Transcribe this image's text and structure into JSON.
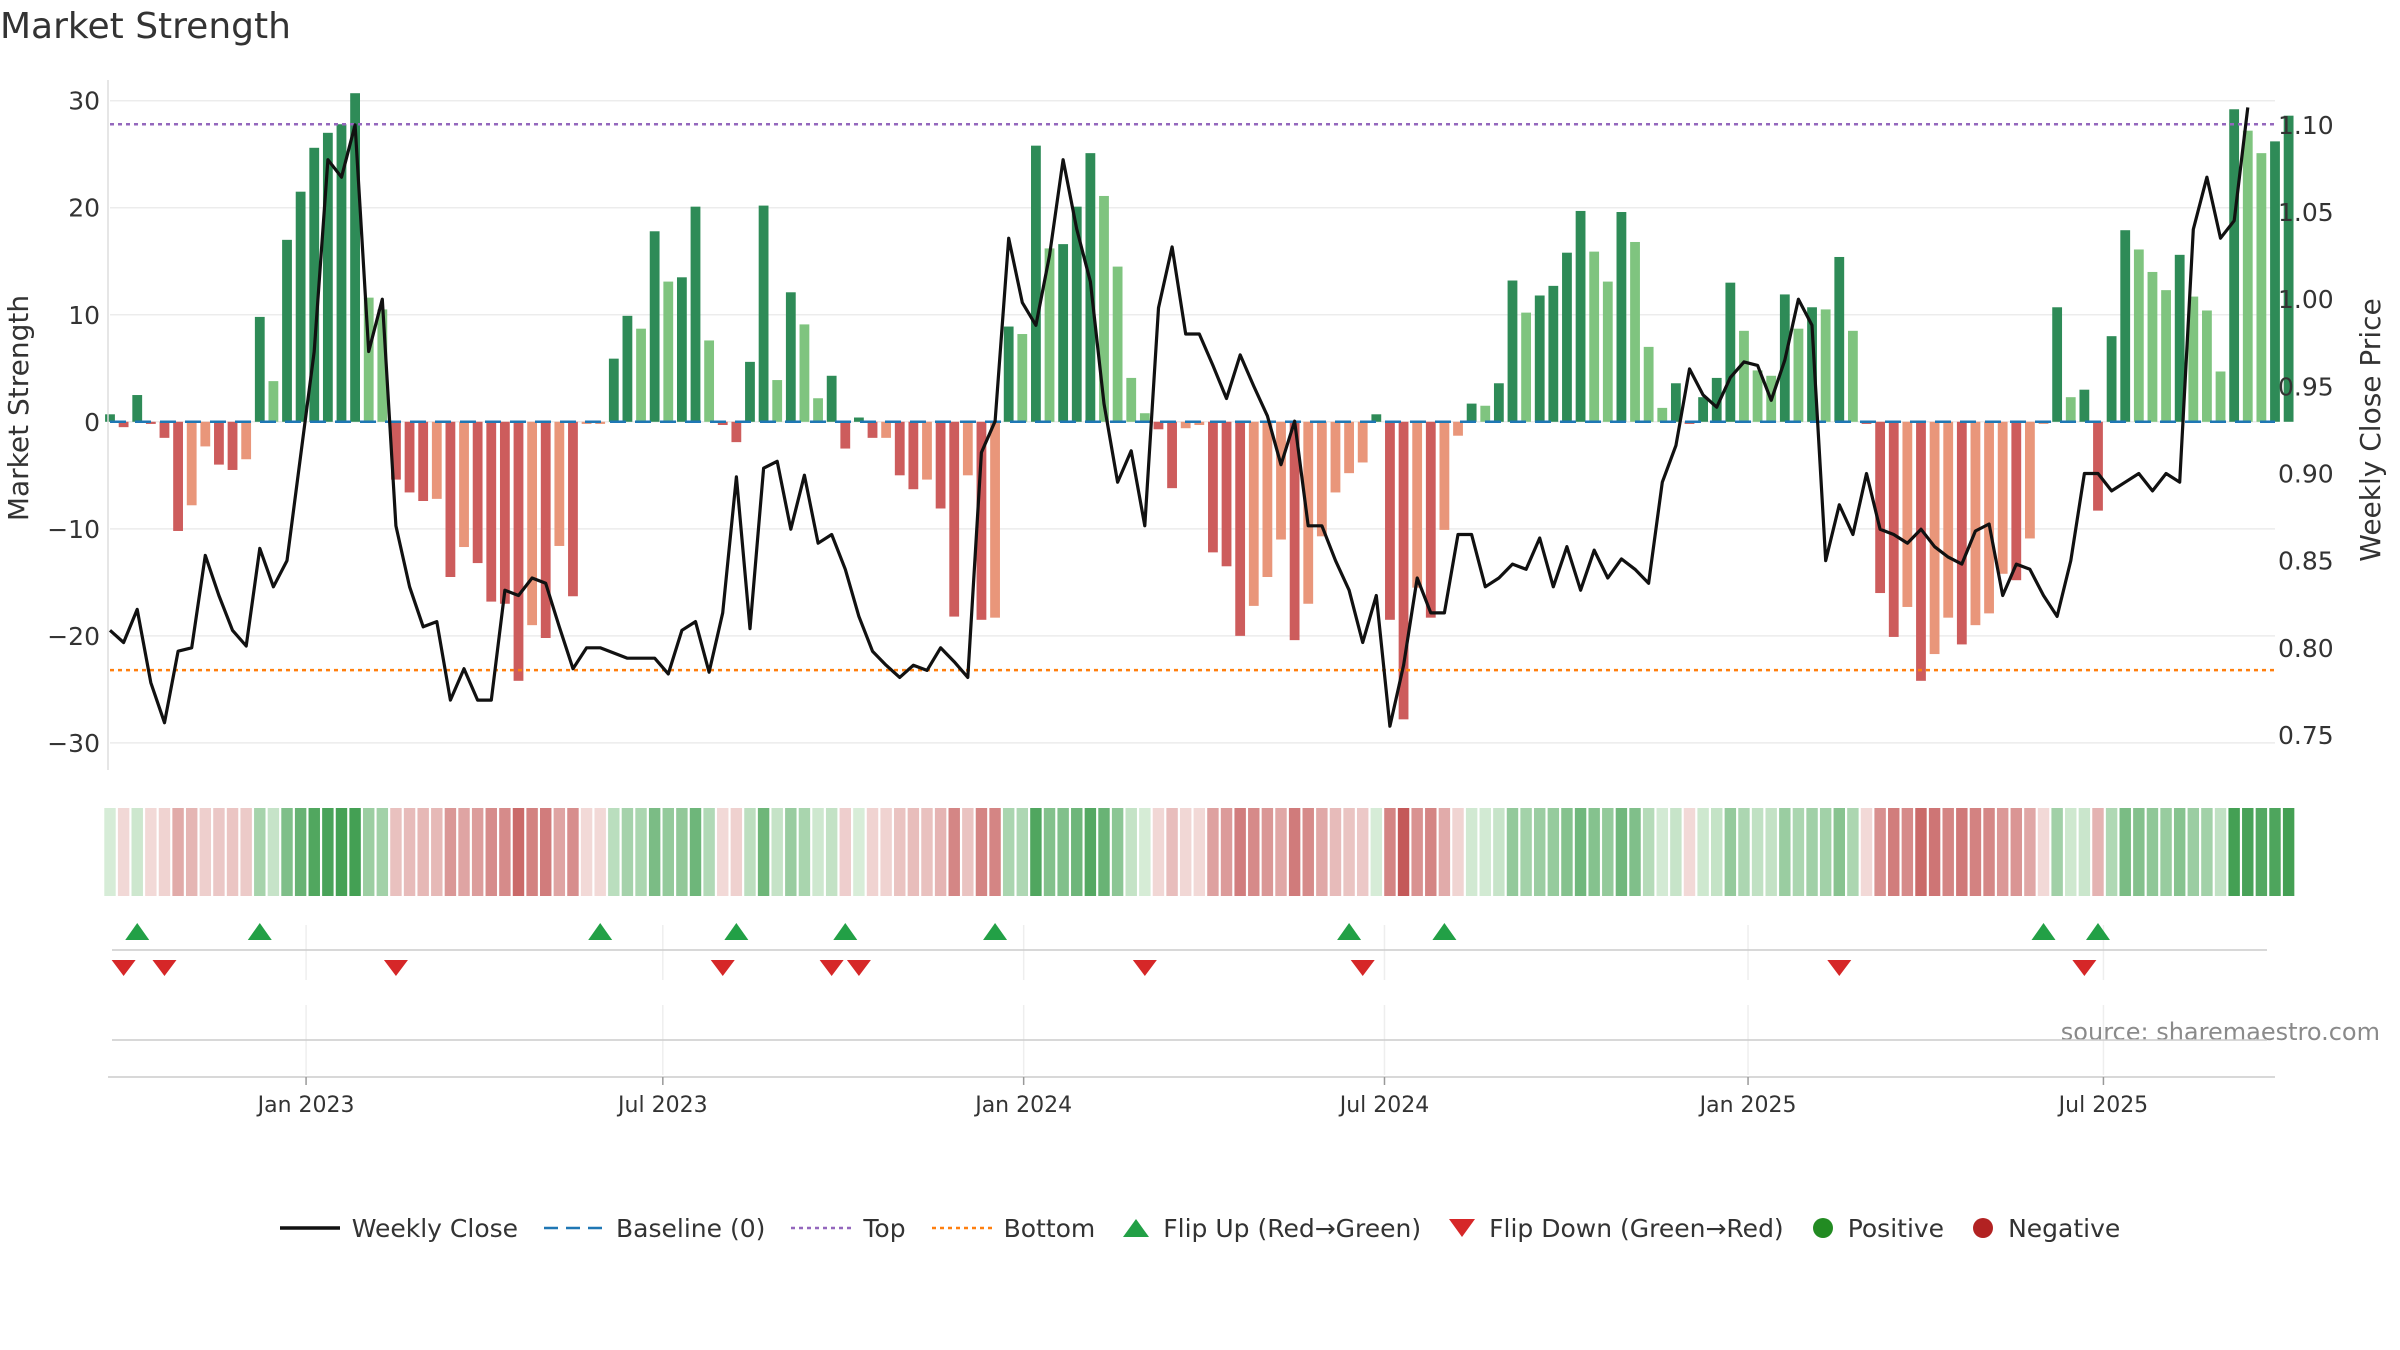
{
  "chart_data": {
    "type": "bar",
    "title": "Market Strength",
    "ylabel": "Market Strength",
    "y2label": "Weekly Close Price",
    "ylim": [
      -33,
      31
    ],
    "y2lim": [
      0.727,
      1.12
    ],
    "yticks": [
      30,
      20,
      10,
      0,
      -10,
      -20,
      -30
    ],
    "ytick_labels": [
      "30",
      "20",
      "10",
      "0",
      "−10",
      "−20",
      "−30"
    ],
    "y2ticks": [
      1.1,
      1.05,
      1.0,
      0.95,
      0.9,
      0.85,
      0.8,
      0.75
    ],
    "y2tick_labels": [
      "1.10",
      "1.05",
      "1.00",
      "0.95",
      "0.90",
      "0.85",
      "0.80",
      "0.75"
    ],
    "top_threshold": 27.8,
    "bottom_threshold": -23.2,
    "baseline": 0,
    "x_range_weeks": [
      0,
      159
    ],
    "x_ticks": [
      {
        "week": 14.4,
        "label": "Jan 2023"
      },
      {
        "week": 40.6,
        "label": "Jul 2023"
      },
      {
        "week": 67.1,
        "label": "Jan 2024"
      },
      {
        "week": 93.6,
        "label": "Jul 2024"
      },
      {
        "week": 120.3,
        "label": "Jan 2025"
      },
      {
        "week": 146.4,
        "label": "Jul 2025"
      }
    ],
    "strength": [
      0.7,
      -0.5,
      2.5,
      -0.2,
      -1.5,
      -10.2,
      -7.8,
      -2.3,
      -4.0,
      -4.5,
      -3.5,
      9.8,
      3.8,
      17.0,
      21.5,
      25.6,
      27.0,
      27.8,
      30.7,
      11.6,
      10.5,
      -5.4,
      -6.6,
      -7.4,
      -7.2,
      -14.5,
      -11.7,
      -13.2,
      -16.8,
      -17.0,
      -24.2,
      -19.0,
      -20.2,
      -11.6,
      -16.3,
      -0.2,
      -0.2,
      5.9,
      9.9,
      8.7,
      17.8,
      13.1,
      13.5,
      20.1,
      7.6,
      -0.3,
      -1.9,
      5.6,
      20.2,
      3.9,
      12.1,
      9.1,
      2.2,
      4.3,
      -2.5,
      0.4,
      -1.5,
      -1.5,
      -5.0,
      -6.3,
      -5.4,
      -8.1,
      -18.2,
      -5.0,
      -18.5,
      -18.3,
      8.9,
      8.2,
      25.8,
      16.2,
      16.6,
      20.1,
      25.1,
      21.1,
      14.5,
      4.1,
      0.8,
      -0.7,
      -6.2,
      -0.6,
      -0.3,
      -12.2,
      -13.5,
      -20.0,
      -17.2,
      -14.5,
      -11.0,
      -20.4,
      -17.0,
      -10.7,
      -6.6,
      -4.8,
      -3.8,
      0.7,
      -18.5,
      -27.8,
      -15.5,
      -18.3,
      -10.1,
      -1.3,
      1.7,
      1.5,
      3.6,
      13.2,
      10.2,
      11.8,
      12.7,
      15.8,
      19.7,
      15.9,
      13.1,
      19.6,
      16.8,
      7.0,
      1.3,
      3.6,
      -0.2,
      2.3,
      4.1,
      13.0,
      8.5,
      4.8,
      4.3,
      11.9,
      8.7,
      10.7,
      10.5,
      15.4,
      8.5,
      -0.2,
      -16.0,
      -20.1,
      -17.3,
      -24.2,
      -21.7,
      -18.3,
      -20.8,
      -19.0,
      -17.9,
      -14.2,
      -14.8,
      -10.9,
      -0.2,
      10.7,
      2.3,
      3.0,
      -8.3,
      8.0,
      17.9,
      16.1,
      14.0,
      12.3,
      15.6,
      11.7,
      10.4,
      4.7,
      29.2,
      27.2,
      25.1,
      26.2,
      28.6
    ],
    "weekly_close": [
      0.81,
      0.803,
      0.822,
      0.78,
      0.757,
      0.798,
      0.8,
      0.853,
      0.83,
      0.81,
      0.801,
      0.857,
      0.835,
      0.85,
      0.91,
      0.97,
      1.08,
      1.07,
      1.1,
      0.97,
      1.0,
      0.87,
      0.835,
      0.812,
      0.815,
      0.77,
      0.788,
      0.77,
      0.77,
      0.833,
      0.83,
      0.84,
      0.837,
      0.812,
      0.788,
      0.8,
      0.8,
      0.797,
      0.794,
      0.794,
      0.794,
      0.785,
      0.81,
      0.815,
      0.786,
      0.82,
      0.898,
      0.811,
      0.903,
      0.907,
      0.868,
      0.899,
      0.86,
      0.865,
      0.845,
      0.818,
      0.798,
      0.79,
      0.783,
      0.79,
      0.787,
      0.8,
      0.792,
      0.783,
      0.912,
      0.93,
      1.035,
      0.998,
      0.985,
      1.025,
      1.08,
      1.04,
      1.01,
      0.94,
      0.895,
      0.913,
      0.87,
      0.995,
      1.03,
      0.98,
      0.98,
      0.962,
      0.943,
      0.968,
      0.95,
      0.933,
      0.905,
      0.93,
      0.87,
      0.87,
      0.85,
      0.833,
      0.803,
      0.83,
      0.755,
      0.79,
      0.84,
      0.82,
      0.82,
      0.865,
      0.865,
      0.835,
      0.84,
      0.848,
      0.845,
      0.863,
      0.835,
      0.858,
      0.833,
      0.856,
      0.84,
      0.851,
      0.845,
      0.837,
      0.895,
      0.916,
      0.96,
      0.945,
      0.938,
      0.955,
      0.964,
      0.962,
      0.942,
      0.965,
      1.0,
      0.985,
      0.85,
      0.882,
      0.865,
      0.9,
      0.868,
      0.865,
      0.86,
      0.868,
      0.858,
      0.852,
      0.848,
      0.867,
      0.871,
      0.83,
      0.848,
      0.845,
      0.83,
      0.818,
      0.85,
      0.9,
      0.9,
      0.89,
      0.895,
      0.9,
      0.89,
      0.9,
      0.895,
      1.04,
      1.07,
      1.035,
      1.045,
      1.11
    ],
    "heat_strip": "per-week colour mirrors strength sign and magnitude",
    "flip_up_weeks": [
      2,
      11,
      36,
      46,
      54,
      65,
      91,
      98,
      142,
      146
    ],
    "flip_down_weeks": [
      1,
      4,
      21,
      45,
      53,
      55,
      76,
      92,
      127,
      145
    ],
    "source": "source: sharemaestro.com",
    "legend": [
      {
        "key": "close",
        "label": "Weekly Close"
      },
      {
        "key": "baseline",
        "label": "Baseline (0)"
      },
      {
        "key": "top",
        "label": "Top"
      },
      {
        "key": "bottom",
        "label": "Bottom"
      },
      {
        "key": "flipup",
        "label": "Flip Up (Red→Green)"
      },
      {
        "key": "flipdown",
        "label": "Flip Down (Green→Red)"
      },
      {
        "key": "positive",
        "label": "Positive"
      },
      {
        "key": "negative",
        "label": "Negative"
      }
    ],
    "colors": {
      "pos_strong": "#2e8b57",
      "pos_light": "#7fc47f",
      "neg_strong": "#cd5c5c",
      "neg_light": "#e9967a",
      "close_line": "#111111",
      "baseline": "#1f77b4",
      "top": "#9467bd",
      "bottom": "#ff7f0e",
      "flip_up": "#22a046",
      "flip_down": "#d62728",
      "positive_dot": "#228b22",
      "negative_dot": "#b22222"
    }
  }
}
